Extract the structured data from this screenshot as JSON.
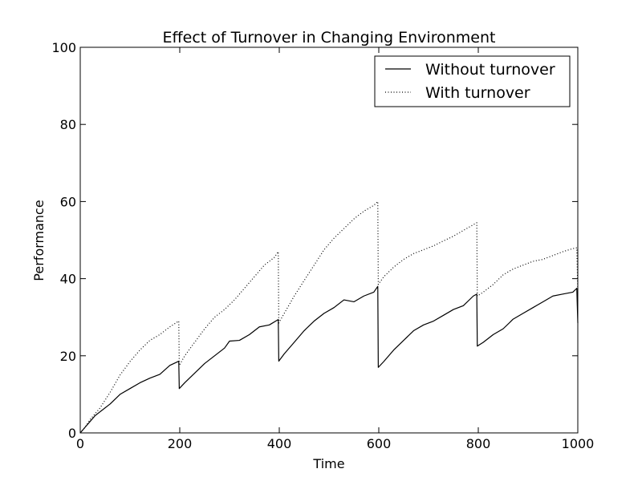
{
  "chart_data": {
    "type": "line",
    "title": "Effect of Turnover in Changing Environment",
    "xlabel": "Time",
    "ylabel": "Performance",
    "xlim": [
      0,
      1000
    ],
    "ylim": [
      0,
      100
    ],
    "xticks": [
      "0",
      "200",
      "400",
      "600",
      "800",
      "1000"
    ],
    "yticks": [
      "0",
      "20",
      "40",
      "60",
      "80",
      "100"
    ],
    "grid": false,
    "legend_position": "top-right",
    "series": [
      {
        "name": "Without turnover",
        "style": "solid",
        "color": "#000000",
        "points": [
          [
            0,
            0
          ],
          [
            10,
            1.5
          ],
          [
            20,
            3
          ],
          [
            30,
            4.5
          ],
          [
            40,
            5.5
          ],
          [
            60,
            7.5
          ],
          [
            80,
            10
          ],
          [
            100,
            11.5
          ],
          [
            120,
            13
          ],
          [
            140,
            14.2
          ],
          [
            160,
            15.2
          ],
          [
            180,
            17.5
          ],
          [
            198,
            18.6
          ],
          [
            199,
            11.5
          ],
          [
            210,
            13
          ],
          [
            230,
            15.5
          ],
          [
            250,
            18
          ],
          [
            270,
            20
          ],
          [
            290,
            22
          ],
          [
            300,
            23.8
          ],
          [
            320,
            24
          ],
          [
            340,
            25.5
          ],
          [
            360,
            27.5
          ],
          [
            380,
            28
          ],
          [
            398,
            29.4
          ],
          [
            399,
            18.6
          ],
          [
            410,
            20.5
          ],
          [
            430,
            23.5
          ],
          [
            450,
            26.5
          ],
          [
            470,
            29
          ],
          [
            490,
            31
          ],
          [
            510,
            32.5
          ],
          [
            530,
            34.5
          ],
          [
            550,
            34
          ],
          [
            570,
            35.5
          ],
          [
            590,
            36.5
          ],
          [
            598,
            38
          ],
          [
            599,
            17
          ],
          [
            610,
            18.5
          ],
          [
            630,
            21.5
          ],
          [
            650,
            24
          ],
          [
            670,
            26.5
          ],
          [
            690,
            28
          ],
          [
            710,
            29
          ],
          [
            730,
            30.5
          ],
          [
            750,
            32
          ],
          [
            770,
            33
          ],
          [
            790,
            35.5
          ],
          [
            797,
            36
          ],
          [
            798,
            22.5
          ],
          [
            810,
            23.5
          ],
          [
            830,
            25.5
          ],
          [
            850,
            27
          ],
          [
            870,
            29.5
          ],
          [
            890,
            31
          ],
          [
            910,
            32.5
          ],
          [
            930,
            34
          ],
          [
            950,
            35.5
          ],
          [
            970,
            36
          ],
          [
            990,
            36.5
          ],
          [
            998,
            37.5
          ],
          [
            1000,
            28.5
          ]
        ]
      },
      {
        "name": "With turnover",
        "style": "dotted",
        "color": "#000000",
        "points": [
          [
            0,
            0
          ],
          [
            10,
            1.5
          ],
          [
            20,
            3.5
          ],
          [
            30,
            5
          ],
          [
            40,
            6.5
          ],
          [
            60,
            10.5
          ],
          [
            80,
            15
          ],
          [
            100,
            18.5
          ],
          [
            120,
            21.5
          ],
          [
            140,
            24
          ],
          [
            160,
            25.5
          ],
          [
            180,
            27.5
          ],
          [
            198,
            29
          ],
          [
            199,
            17.5
          ],
          [
            210,
            20
          ],
          [
            230,
            23.5
          ],
          [
            250,
            27
          ],
          [
            270,
            30
          ],
          [
            290,
            32
          ],
          [
            310,
            34.5
          ],
          [
            330,
            37.5
          ],
          [
            350,
            40.5
          ],
          [
            370,
            43.5
          ],
          [
            390,
            45.5
          ],
          [
            398,
            47
          ],
          [
            399,
            28.5
          ],
          [
            410,
            31
          ],
          [
            430,
            35.5
          ],
          [
            450,
            39.5
          ],
          [
            470,
            43.5
          ],
          [
            490,
            47.5
          ],
          [
            510,
            50.5
          ],
          [
            530,
            53
          ],
          [
            550,
            55.5
          ],
          [
            570,
            57.5
          ],
          [
            590,
            59
          ],
          [
            598,
            60
          ],
          [
            599,
            38.5
          ],
          [
            610,
            40.5
          ],
          [
            630,
            43
          ],
          [
            650,
            45
          ],
          [
            670,
            46.5
          ],
          [
            690,
            47.5
          ],
          [
            710,
            48.5
          ],
          [
            730,
            49.8
          ],
          [
            750,
            51
          ],
          [
            770,
            52.5
          ],
          [
            790,
            54
          ],
          [
            797,
            54.5
          ],
          [
            798,
            35.5
          ],
          [
            810,
            36.5
          ],
          [
            830,
            38.5
          ],
          [
            850,
            41
          ],
          [
            870,
            42.5
          ],
          [
            890,
            43.5
          ],
          [
            910,
            44.5
          ],
          [
            930,
            45
          ],
          [
            950,
            46
          ],
          [
            970,
            47
          ],
          [
            990,
            47.8
          ],
          [
            998,
            48
          ],
          [
            1000,
            37
          ]
        ]
      }
    ]
  }
}
